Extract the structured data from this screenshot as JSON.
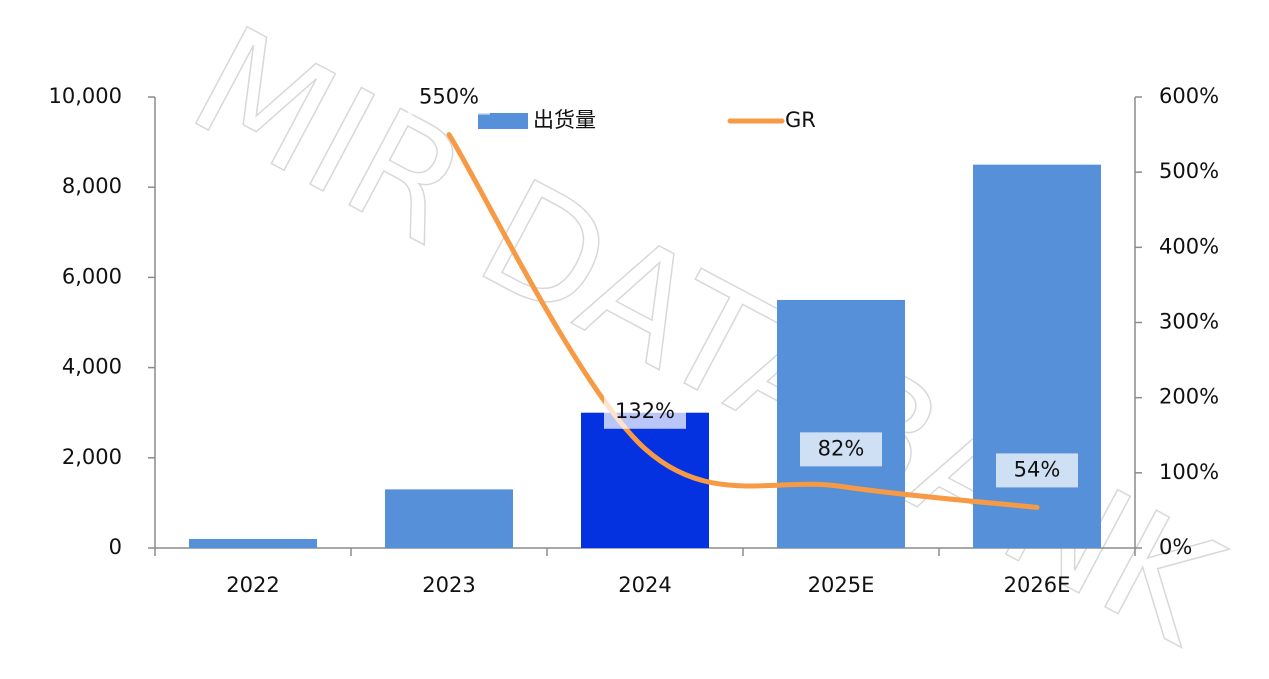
{
  "chart_data": {
    "type": "bar-line",
    "watermark": "MIR DATABANK",
    "categories": [
      "2022",
      "2023",
      "2024",
      "2025E",
      "2026E"
    ],
    "series": [
      {
        "name": "出货量",
        "type": "bar",
        "color": "#5590d8",
        "colors": [
          "#5590d8",
          "#5590d8",
          "#0432e0",
          "#5590d8",
          "#5590d8"
        ],
        "values": [
          200,
          1300,
          3000,
          5500,
          8500
        ]
      },
      {
        "name": "GR",
        "type": "line",
        "axis": "y2",
        "color": "#f79a46",
        "values": [
          null,
          550,
          132,
          82,
          54
        ],
        "value_labels": [
          null,
          "550%",
          "132%",
          "82%",
          "54%"
        ]
      }
    ],
    "ylim": [
      0,
      10000
    ],
    "yticks": [
      0,
      {
        "value": 2000,
        "label": "2,000"
      },
      {
        "value": 4000,
        "label": "4,000"
      },
      {
        "value": 6000,
        "label": "6,000"
      },
      {
        "value": 8000,
        "label": "8,000"
      },
      {
        "value": 10000,
        "label": "10,000"
      }
    ],
    "y2lim": [
      0,
      600
    ],
    "y2ticks": [
      {
        "value": 0,
        "label": "0%"
      },
      {
        "value": 100,
        "label": "100%"
      },
      {
        "value": 200,
        "label": "200%"
      },
      {
        "value": 300,
        "label": "300%"
      },
      {
        "value": 400,
        "label": "400%"
      },
      {
        "value": 500,
        "label": "500%"
      },
      {
        "value": 600,
        "label": "600%"
      }
    ],
    "legend": "top"
  }
}
